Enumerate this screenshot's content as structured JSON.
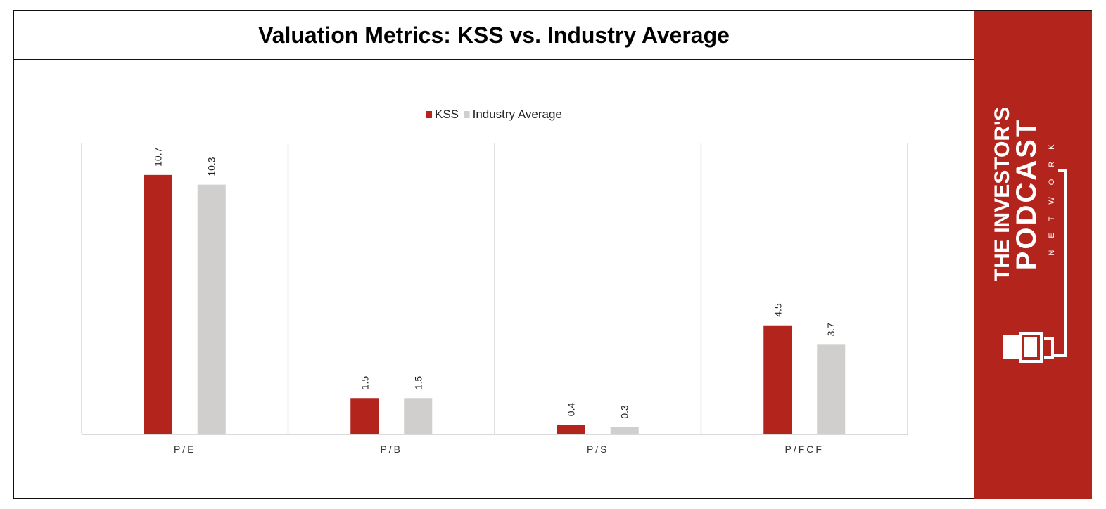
{
  "chart_data": {
    "type": "bar",
    "title": "Valuation Metrics: KSS vs. Industry Average",
    "categories": [
      "P/E",
      "P/B",
      "P/S",
      "P/FCF"
    ],
    "series": [
      {
        "name": "KSS",
        "values": [
          10.7,
          1.5,
          0.4,
          4.5
        ],
        "color": "#b3241c"
      },
      {
        "name": "Industry Average",
        "values": [
          10.3,
          1.5,
          0.3,
          3.7
        ],
        "color": "#d0cfcd"
      }
    ],
    "legend_position": "top",
    "grid": "vertical category separators",
    "ylim": [
      0,
      12
    ]
  },
  "brand": {
    "line1": "THE INVESTOR'S",
    "line2": "PODCAST",
    "line3": "NETWORK",
    "color": "#b3241c"
  }
}
